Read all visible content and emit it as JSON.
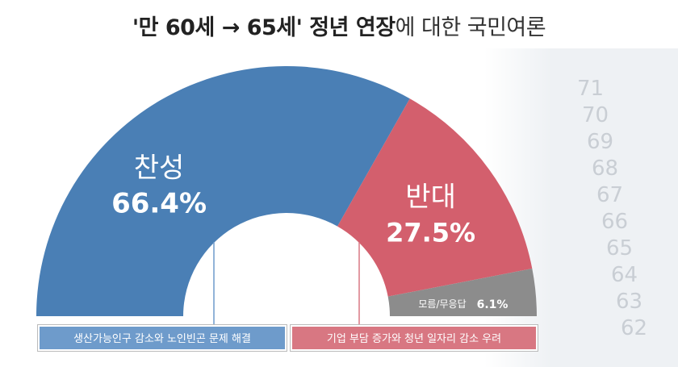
{
  "title": {
    "bold": "'만 60세 → 65세' 정년 연장",
    "normal": "에 대한 국민여론"
  },
  "colors": {
    "agree": "#4a7fb5",
    "disagree": "#d35f6d",
    "unknown": "#8c8c8c",
    "background_decor": "#eef1f4"
  },
  "chart_data": {
    "type": "pie",
    "style": "half-donut",
    "title": "'만 60세 → 65세' 정년 연장에 대한 국민여론",
    "slices": [
      {
        "label": "찬성",
        "value": 66.4,
        "display": "66.4%"
      },
      {
        "label": "반대",
        "value": 27.5,
        "display": "27.5%"
      },
      {
        "label": "모름/무응답",
        "value": 6.1,
        "display": "6.1%"
      }
    ],
    "reasons": [
      {
        "slice": "찬성",
        "text": "생산가능인구 감소와 노인빈곤 문제 해결"
      },
      {
        "slice": "반대",
        "text": "기업 부담 증가와 청년 일자리 감소 우려"
      }
    ]
  },
  "decor_numbers": [
    "71",
    "70",
    "69",
    "68",
    "67",
    "66",
    "65",
    "64",
    "63",
    "62"
  ]
}
